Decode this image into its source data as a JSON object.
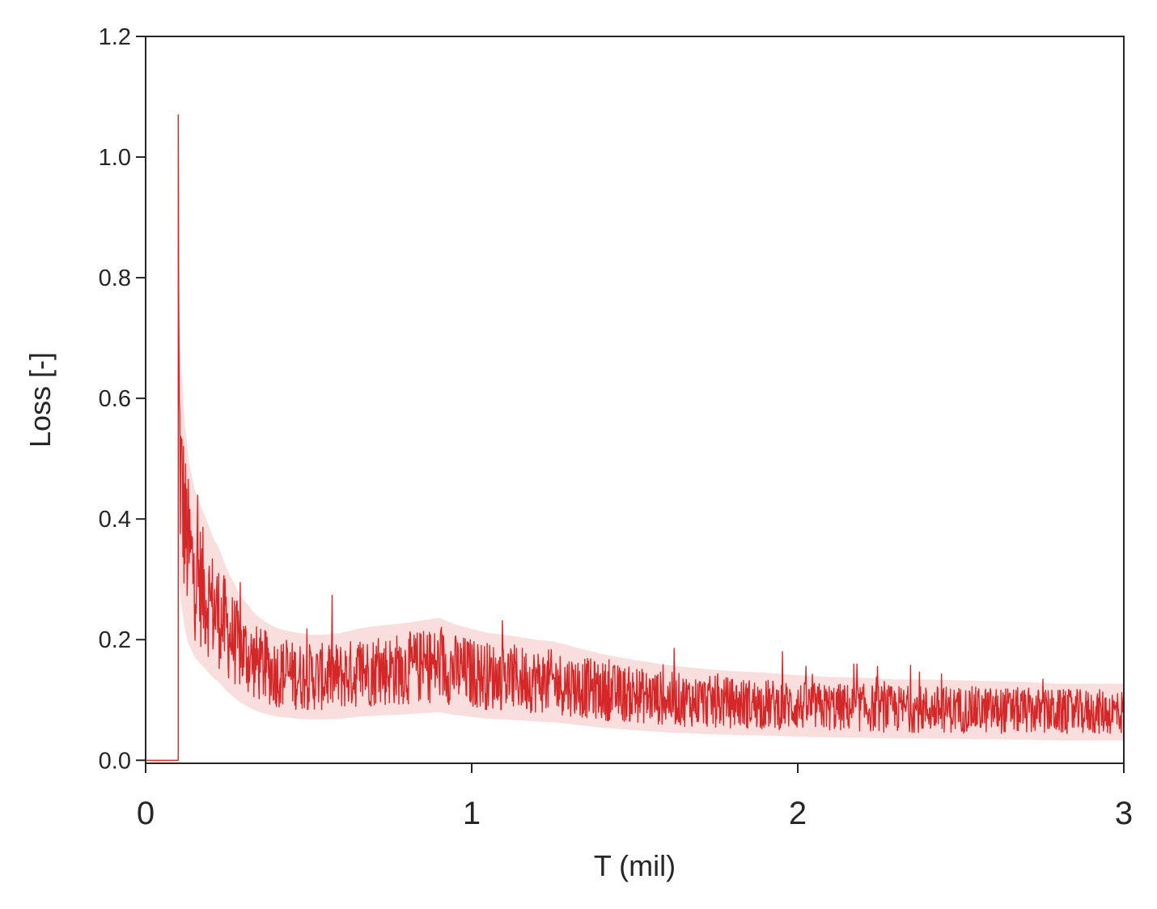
{
  "chart_data": {
    "type": "line",
    "title": "",
    "xlabel": "T (mil)",
    "ylabel": "Loss [-]",
    "xlim": [
      0,
      3.0
    ],
    "ylim": [
      -0.005,
      1.2
    ],
    "xticks": [
      0,
      1,
      2,
      3
    ],
    "xtick_labels": [
      "0",
      "1",
      "2",
      "3"
    ],
    "yticks": [
      0.0,
      0.2,
      0.4,
      0.6,
      0.8,
      1.0,
      1.2
    ],
    "ytick_labels": [
      "0.0",
      "0.2",
      "0.4",
      "0.6",
      "0.8",
      "1.0",
      "1.2"
    ],
    "grid": false,
    "legend": "none",
    "series": [
      {
        "color": "#d62728",
        "band_color": "#f4c2c2",
        "x": [
          0,
          0.1,
          0.1,
          0.102,
          0.106,
          0.11,
          0.115,
          0.12,
          0.13,
          0.14,
          0.15,
          0.16,
          0.17,
          0.18,
          0.19,
          0.2,
          0.21,
          0.22,
          0.23,
          0.24,
          0.25,
          0.27,
          0.29,
          0.31,
          0.33,
          0.35,
          0.38,
          0.41,
          0.44,
          0.47,
          0.5,
          0.55,
          0.6,
          0.65,
          0.7,
          0.75,
          0.8,
          0.85,
          0.9,
          0.95,
          1.0,
          1.05,
          1.1,
          1.15,
          1.2,
          1.25,
          1.3,
          1.4,
          1.5,
          1.6,
          1.7,
          1.8,
          1.9,
          2.0,
          2.1,
          2.2,
          2.3,
          2.4,
          2.5,
          2.6,
          2.7,
          2.8,
          2.9,
          3.0
        ],
        "y": [
          0.0,
          0.0,
          1.07,
          0.57,
          0.49,
          0.45,
          0.42,
          0.39,
          0.35,
          0.33,
          0.31,
          0.3,
          0.29,
          0.28,
          0.27,
          0.26,
          0.25,
          0.245,
          0.235,
          0.225,
          0.215,
          0.2,
          0.185,
          0.175,
          0.165,
          0.158,
          0.15,
          0.145,
          0.142,
          0.14,
          0.138,
          0.138,
          0.14,
          0.145,
          0.148,
          0.15,
          0.152,
          0.155,
          0.158,
          0.15,
          0.145,
          0.14,
          0.138,
          0.135,
          0.132,
          0.13,
          0.125,
          0.115,
          0.108,
          0.102,
          0.098,
          0.095,
          0.093,
          0.09,
          0.088,
          0.087,
          0.085,
          0.085,
          0.084,
          0.083,
          0.082,
          0.08,
          0.08,
          0.08
        ]
      }
    ]
  }
}
